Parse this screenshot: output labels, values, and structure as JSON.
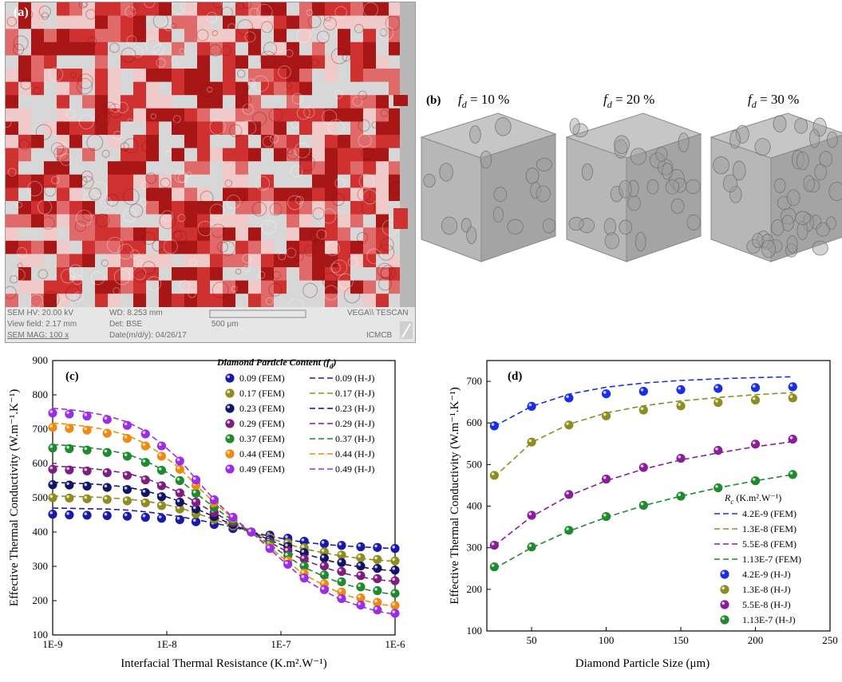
{
  "panel_a": {
    "label": "(a)",
    "footer": {
      "sem_hv": "SEM HV: 20.00 kV",
      "wd": "WD: 8.253 mm",
      "brand": "VEGA\\\\ TESCAN",
      "view_field": "View field: 2.17 mm",
      "det": "Det: BSE",
      "scale": "500 μm",
      "sem_mag": "SEM MAG: 100 x",
      "date": "Date(m/d/y): 04/26/17",
      "lab": "ICMCB"
    }
  },
  "panel_b": {
    "label": "(b)",
    "cubes": [
      {
        "f": "f",
        "sub": "d",
        "value": " = 10 %"
      },
      {
        "f": "f",
        "sub": "d",
        "value": " = 20 %"
      },
      {
        "f": "f",
        "sub": "d",
        "value": " = 30 %"
      }
    ]
  },
  "chart_data": [
    {
      "panel": "(c)",
      "type": "line",
      "ylabel": "Effective Thermal Conductivity (W.m⁻¹.K⁻¹)",
      "xlabel": "Interfacial Thermal Resistance (K.m².W⁻¹)",
      "x_scale": "log",
      "xlim": [
        1e-09,
        1e-06
      ],
      "ylim": [
        100,
        900
      ],
      "x_ticks": [
        "1E-9",
        "1E-8",
        "1E-7",
        "1E-6"
      ],
      "y_ticks": [
        100,
        200,
        300,
        400,
        500,
        600,
        700,
        800,
        900
      ],
      "legend_title": "Diamond Particle Content (f",
      "legend_title_sub": "d",
      "legend_title_end": ")",
      "legend_placement": "top-right",
      "x": [
        1e-09,
        1.4e-09,
        2e-09,
        3e-09,
        4.5e-09,
        6.5e-09,
        9e-09,
        1.3e-08,
        1.8e-08,
        2.6e-08,
        3.8e-08,
        5.5e-08,
        8e-08,
        1.15e-07,
        1.6e-07,
        2.4e-07,
        3.4e-07,
        5e-07,
        7e-07,
        1e-06
      ],
      "series": [
        {
          "name": "0.09",
          "color": "#1a1aa8",
          "fem": [
            452,
            450,
            449,
            448,
            446,
            443,
            440,
            436,
            430,
            422,
            410,
            400,
            391,
            382,
            373,
            366,
            361,
            357,
            355,
            352
          ],
          "hj": [
            470,
            469,
            468,
            467,
            464,
            459,
            453,
            445,
            436,
            426,
            415,
            400,
            388,
            378,
            370,
            364,
            360,
            357,
            354,
            352
          ]
        },
        {
          "name": "0.17",
          "color": "#8e8e20",
          "fem": [
            500,
            499,
            497,
            495,
            491,
            485,
            477,
            467,
            453,
            437,
            418,
            400,
            383,
            368,
            354,
            342,
            333,
            325,
            320,
            316
          ],
          "hj": [
            505,
            504,
            503,
            500,
            496,
            490,
            482,
            471,
            455,
            437,
            418,
            400,
            382,
            365,
            351,
            339,
            330,
            323,
            318,
            315
          ]
        },
        {
          "name": "0.23",
          "color": "#141466",
          "fem": [
            538,
            537,
            534,
            530,
            524,
            515,
            503,
            487,
            467,
            445,
            422,
            400,
            378,
            358,
            340,
            324,
            311,
            301,
            294,
            289
          ],
          "hj": [
            545,
            543,
            541,
            537,
            531,
            520,
            507,
            490,
            468,
            445,
            421,
            400,
            377,
            355,
            337,
            320,
            307,
            298,
            291,
            287
          ]
        },
        {
          "name": "0.29",
          "color": "#7e1e7e",
          "fem": [
            583,
            581,
            578,
            573,
            565,
            552,
            535,
            514,
            487,
            457,
            428,
            400,
            372,
            345,
            322,
            301,
            285,
            273,
            264,
            258
          ],
          "hj": [
            592,
            590,
            586,
            580,
            571,
            557,
            538,
            515,
            487,
            456,
            427,
            400,
            370,
            342,
            318,
            297,
            281,
            269,
            261,
            256
          ]
        },
        {
          "name": "0.37",
          "color": "#1f8a2e",
          "fem": [
            645,
            643,
            639,
            632,
            621,
            603,
            580,
            550,
            513,
            472,
            434,
            400,
            365,
            331,
            301,
            275,
            255,
            240,
            229,
            221
          ],
          "hj": [
            655,
            652,
            647,
            639,
            627,
            608,
            583,
            551,
            513,
            472,
            433,
            400,
            363,
            328,
            297,
            270,
            250,
            236,
            225,
            218
          ]
        },
        {
          "name": "0.44",
          "color": "#ee8a10",
          "fem": [
            705,
            702,
            697,
            688,
            673,
            651,
            621,
            583,
            536,
            486,
            440,
            400,
            357,
            316,
            280,
            249,
            225,
            208,
            195,
            186
          ],
          "hj": [
            718,
            714,
            708,
            698,
            682,
            658,
            626,
            586,
            537,
            486,
            439,
            400,
            355,
            313,
            276,
            244,
            220,
            203,
            191,
            183
          ]
        },
        {
          "name": "0.49",
          "color": "#9a2ee6",
          "fem": [
            747,
            744,
            738,
            728,
            711,
            686,
            651,
            607,
            552,
            494,
            443,
            400,
            352,
            306,
            266,
            232,
            206,
            187,
            173,
            163
          ],
          "hj": [
            761,
            757,
            750,
            739,
            721,
            694,
            657,
            611,
            554,
            495,
            442,
            400,
            350,
            303,
            262,
            228,
            202,
            183,
            169,
            160
          ]
        }
      ]
    },
    {
      "panel": "(d)",
      "type": "line",
      "ylabel": "Effective Thermal Conductivity (W.m⁻¹.K⁻¹)",
      "xlabel": "Diamond Particle Size (μm)",
      "xlim": [
        20,
        250
      ],
      "ylim": [
        100,
        750
      ],
      "x_ticks": [
        50,
        100,
        150,
        200,
        250
      ],
      "y_ticks": [
        100,
        200,
        300,
        400,
        500,
        600,
        700
      ],
      "legend_title": "R",
      "legend_title_sub": "c",
      "legend_title_end": " (K.m².W⁻¹)",
      "legend_placement": "bottom-right",
      "x": [
        25,
        50,
        75,
        100,
        125,
        150,
        175,
        200,
        225
      ],
      "series": [
        {
          "name": "4.2E-9",
          "color": "#1a2ee6",
          "fem": [
            592,
            640,
            669,
            686,
            696,
            702,
            706,
            709,
            711
          ],
          "hj": [
            593,
            640,
            660,
            670,
            676,
            680,
            683,
            685,
            687
          ]
        },
        {
          "name": "1.3E-8",
          "color": "#8e8e20",
          "fem": [
            470,
            553,
            597,
            624,
            641,
            653,
            661,
            668,
            673
          ],
          "hj": [
            474,
            554,
            595,
            617,
            631,
            641,
            649,
            655,
            660
          ]
        },
        {
          "name": "5.5E-8",
          "color": "#8a1e9a",
          "fem": [
            305,
            375,
            425,
            461,
            489,
            511,
            528,
            543,
            555
          ],
          "hj": [
            306,
            378,
            428,
            465,
            493,
            515,
            534,
            549,
            561
          ]
        },
        {
          "name": "1.13E-7",
          "color": "#1f8a2e",
          "fem": [
            250,
            300,
            340,
            373,
            401,
            424,
            444,
            461,
            476
          ],
          "hj": [
            254,
            302,
            342,
            375,
            402,
            424,
            444,
            461,
            476
          ]
        }
      ]
    }
  ],
  "legend_labels": {
    "c_fem": [
      "0.09 (FEM)",
      "0.17 (FEM)",
      "0.23 (FEM)",
      "0.29 (FEM)",
      "0.37 (FEM)",
      "0.44 (FEM)",
      "0.49 (FEM)"
    ],
    "c_hj": [
      "0.09 (H-J)",
      "0.17 (H-J)",
      "0.23 (H-J)",
      "0.29 (H-J)",
      "0.37 (H-J)",
      "0.44 (H-J)",
      "0.49 (H-J)"
    ],
    "d_fem": [
      "4.2E-9 (FEM)",
      "1.3E-8 (FEM)",
      "5.5E-8 (FEM)",
      "1.13E-7 (FEM)"
    ],
    "d_hj": [
      "4.2E-9 (H-J)",
      "1.3E-8 (H-J)",
      "5.5E-8 (H-J)",
      "1.13E-7 (H-J)"
    ]
  }
}
